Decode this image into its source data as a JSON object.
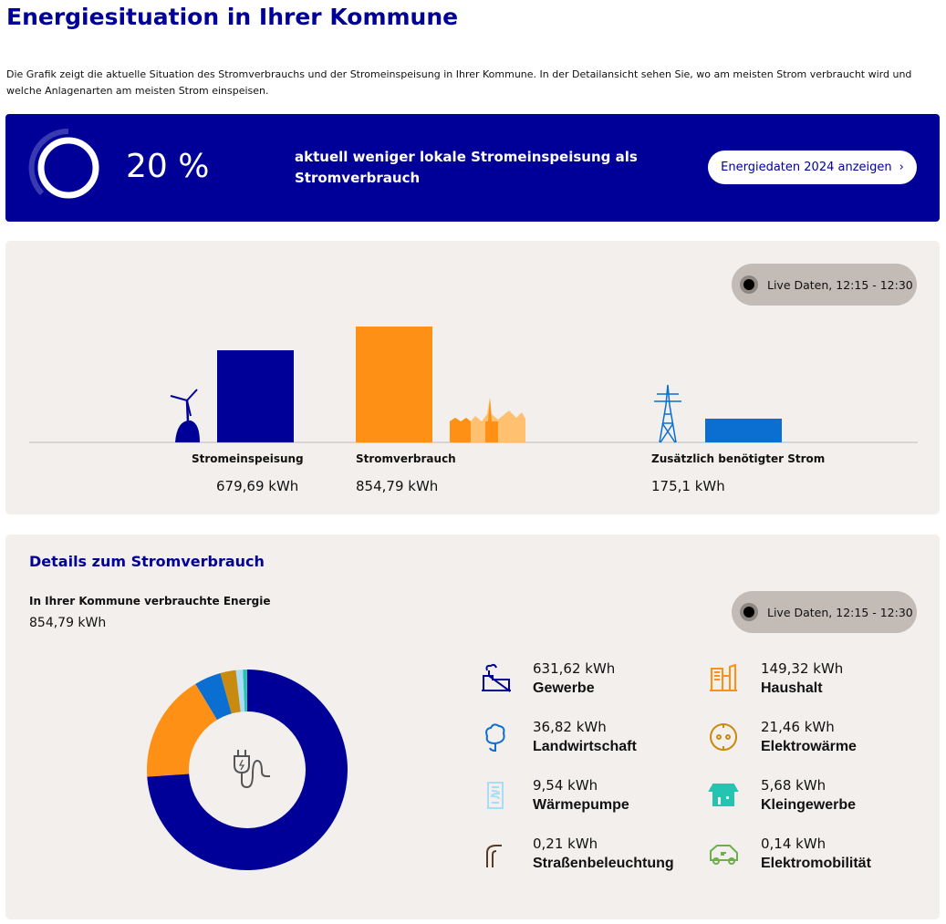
{
  "header": {
    "title": "Energiesituation in Ihrer Kommune",
    "intro": "Die Grafik zeigt die aktuelle Situation des Stromverbrauchs und der Stromeinspeisung in Ihrer Kommune. In der Detailansicht sehen Sie, wo am meisten Strom verbraucht wird und welche Anlagenarten am meisten Strom einspeisen."
  },
  "banner": {
    "percent_label": "20 %",
    "percent": 20,
    "text": "aktuell weniger lokale Stromeinspeisung als Stromverbrauch",
    "button": "Energiedaten 2024 anzeigen"
  },
  "live_label": "Live Daten, 12:15 - 12:30",
  "chart_data": [
    {
      "type": "bar",
      "unit": "kWh",
      "categories": [
        "Stromeinspeisung",
        "Stromverbrauch",
        "Zusätzlich benötigter Strom"
      ],
      "values": [
        679.69,
        854.79,
        175.1
      ],
      "value_labels": [
        "679,69 kWh",
        "854,79 kWh",
        "175,1 kWh"
      ],
      "colors": [
        "#000099",
        "#ff9016",
        "#0a6fd1"
      ]
    },
    {
      "type": "pie",
      "subtype": "donut",
      "unit": "kWh",
      "categories": [
        "Gewerbe",
        "Haushalt",
        "Landwirtschaft",
        "Elektrowärme",
        "Wärmepumpe",
        "Kleingewerbe",
        "Straßenbeleuchtung",
        "Elektromobilität"
      ],
      "values": [
        631.62,
        149.32,
        36.82,
        21.46,
        9.54,
        5.68,
        0.21,
        0.14
      ],
      "colors": [
        "#000099",
        "#ff9016",
        "#0a6fd1",
        "#c98a10",
        "#a9dcf5",
        "#24c4b0",
        "#5a3a22",
        "#6ab04c"
      ]
    }
  ],
  "details": {
    "title": "Details zum Stromverbrauch",
    "sub_label": "In Ihrer Kommune verbrauchte Energie",
    "total": "854,79 kWh",
    "items": [
      {
        "value": "631,62 kWh",
        "name": "Gewerbe",
        "icon": "factory-icon"
      },
      {
        "value": "149,32 kWh",
        "name": "Haushalt",
        "icon": "buildings-icon"
      },
      {
        "value": "36,82 kWh",
        "name": "Landwirtschaft",
        "icon": "tree-icon"
      },
      {
        "value": "21,46 kWh",
        "name": "Elektrowärme",
        "icon": "socket-icon"
      },
      {
        "value": "9,54 kWh",
        "name": "Wärmepumpe",
        "icon": "heat-pump-icon"
      },
      {
        "value": "5,68 kWh",
        "name": "Kleingewerbe",
        "icon": "shop-icon"
      },
      {
        "value": "0,21 kWh",
        "name": "Straßenbeleuchtung",
        "icon": "street-lamp-icon"
      },
      {
        "value": "0,14 kWh",
        "name": "Elektromobilität",
        "icon": "electric-car-icon"
      }
    ]
  }
}
